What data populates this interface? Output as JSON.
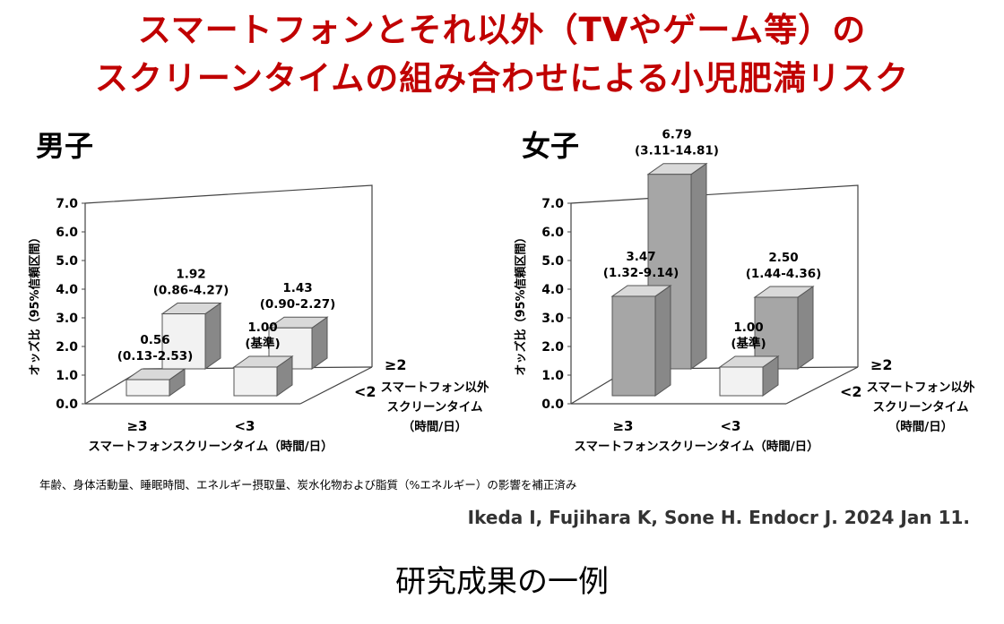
{
  "title_line1": "スマートフォンとそれ以外（TVやゲーム等）の",
  "title_line2": "スクリーンタイムの組み合わせによる小児肥満リスク",
  "footnote": "年齢、身体活動量、睡眠時間、エネルギー摂取量、炭水化物および脂質（%エネルギー）の影響を補正済み",
  "citation": "Ikeda I, Fujihara K, Sone H. Endocr J. 2024 Jan 11.",
  "caption": "研究成果の一例",
  "colors": {
    "title": "#c00000",
    "light_bar": "#f2f2f2",
    "dark_bar": "#a6a6a6"
  },
  "chart_data": [
    {
      "type": "bar",
      "panel_label": "男子",
      "ylabel": "オッズ比（95%信頼区間）",
      "ylim": [
        0,
        7
      ],
      "yticks": [
        "0.0",
        "1.0",
        "2.0",
        "3.0",
        "4.0",
        "5.0",
        "6.0",
        "7.0"
      ],
      "xlabel": "スマートフォンスクリーンタイム（時間/日）",
      "x_categories": [
        "≥3",
        "<3"
      ],
      "depth_label_lines": [
        "スマートフォン以外",
        "スクリーンタイム",
        "（時間/日）"
      ],
      "depth_categories": [
        "≥2",
        "<2"
      ],
      "bars": [
        {
          "x": "≥3",
          "depth": "<2",
          "value": 0.56,
          "label": "0.56",
          "ci": "(0.13-2.53)"
        },
        {
          "x": "≥3",
          "depth": "≥2",
          "value": 1.92,
          "label": "1.92",
          "ci": "(0.86-4.27)"
        },
        {
          "x": "<3",
          "depth": "<2",
          "value": 1.0,
          "label": "1.00",
          "ci": "(基準)"
        },
        {
          "x": "<3",
          "depth": "≥2",
          "value": 1.43,
          "label": "1.43",
          "ci": "(0.90-2.27)"
        }
      ]
    },
    {
      "type": "bar",
      "panel_label": "女子",
      "ylabel": "オッズ比（95%信頼区間）",
      "ylim": [
        0,
        7
      ],
      "yticks": [
        "0.0",
        "1.0",
        "2.0",
        "3.0",
        "4.0",
        "5.0",
        "6.0",
        "7.0"
      ],
      "xlabel": "スマートフォンスクリーンタイム（時間/日）",
      "x_categories": [
        "≥3",
        "<3"
      ],
      "depth_label_lines": [
        "スマートフォン以外",
        "スクリーンタイム",
        "（時間/日）"
      ],
      "depth_categories": [
        "≥2",
        "<2"
      ],
      "bars": [
        {
          "x": "≥3",
          "depth": "<2",
          "value": 3.47,
          "label": "3.47",
          "ci": "(1.32-9.14)"
        },
        {
          "x": "≥3",
          "depth": "≥2",
          "value": 6.79,
          "label": "6.79",
          "ci": "(3.11-14.81)"
        },
        {
          "x": "<3",
          "depth": "<2",
          "value": 1.0,
          "label": "1.00",
          "ci": "(基準)"
        },
        {
          "x": "<3",
          "depth": "≥2",
          "value": 2.5,
          "label": "2.50",
          "ci": "(1.44-4.36)"
        }
      ]
    }
  ]
}
